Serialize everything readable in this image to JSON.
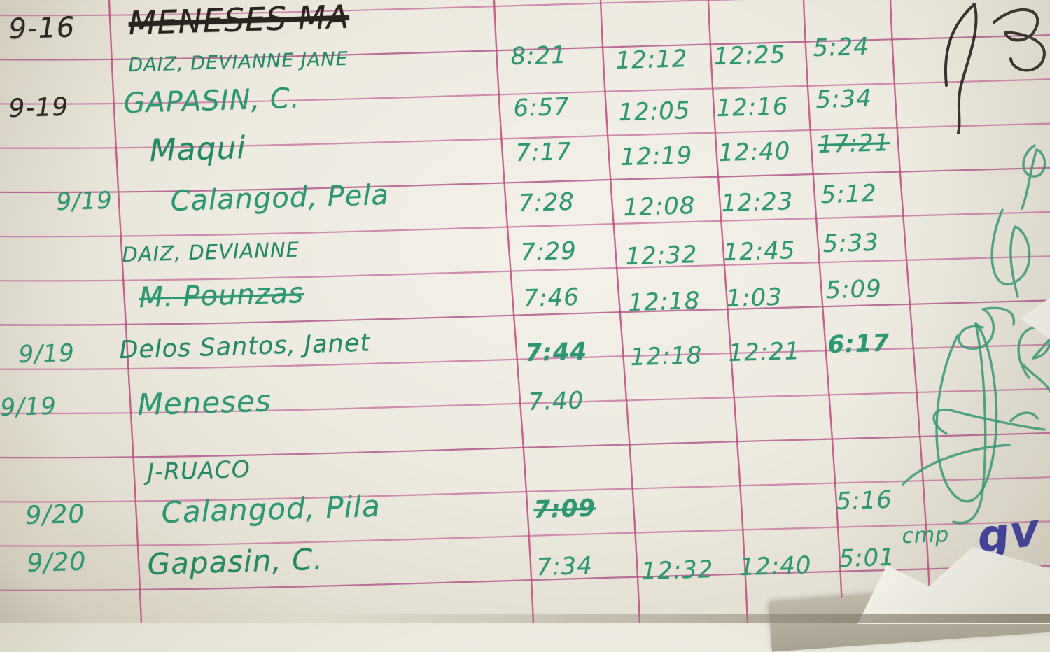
{
  "document": {
    "kind_label": "handwritten time log sheet",
    "header": {
      "date": "9-16",
      "name": "MENESES MA"
    }
  },
  "rows": [
    {
      "date": "9-16",
      "name": "MENESES MA",
      "name_struck": true,
      "ink": "black",
      "times": [
        "",
        "",
        "",
        ""
      ]
    },
    {
      "date": "",
      "name": "DAIZ, DEVIANNE  JANE",
      "times": [
        "8:21",
        "12:12",
        "12:25",
        "5:24"
      ]
    },
    {
      "date": "9-19",
      "name": "GAPASIN, C.",
      "times": [
        "6:57",
        "12:05",
        "12:16",
        "5:34"
      ]
    },
    {
      "date": "",
      "name": "Maqui",
      "times": [
        "7:17",
        "12:19",
        "12:40",
        "17:21"
      ],
      "time_struck": [
        false,
        false,
        false,
        true
      ]
    },
    {
      "date": "9/19",
      "name": "Calangod, Pela",
      "times": [
        "7:28",
        "12:08",
        "12:23",
        "5:12"
      ]
    },
    {
      "date": "",
      "name": "DAIZ, DEVIANNE",
      "times": [
        "7:29",
        "12:32",
        "12:45",
        "5:33"
      ]
    },
    {
      "date": "",
      "name": "M. Pounzas",
      "name_struck": true,
      "times": [
        "7:46",
        "12:18",
        "1:03",
        "5:09"
      ]
    },
    {
      "date": "9/19",
      "name": "Delos Santos, Janet",
      "times": [
        "7:44",
        "12:18",
        "12:21",
        "6:17"
      ],
      "time_bold": [
        true,
        false,
        false,
        true
      ]
    },
    {
      "date": "9/19",
      "name": "Meneses",
      "times": [
        "7.40",
        "",
        "",
        ""
      ]
    },
    {
      "date": "",
      "name": "J-RUACO",
      "times": [
        "",
        "",
        "",
        ""
      ]
    },
    {
      "date": "9/20",
      "name": "Calangod, Pila",
      "times": [
        "7:09",
        "",
        "",
        "5:16"
      ],
      "time_struck": [
        true,
        false,
        false,
        false
      ],
      "time_bold": [
        true,
        false,
        false,
        false
      ]
    },
    {
      "date": "9/20",
      "name": "Gapasin, C.",
      "times": [
        "7:34",
        "12:32",
        "12:40",
        "5:01"
      ],
      "note": "cmp"
    }
  ],
  "margin": {
    "signature_blue": "gv"
  },
  "colors": {
    "green_ink": "#2a9871",
    "black_ink": "#28241e",
    "blue_ink": "#3c3e9e",
    "rule_pink": "#c9719f",
    "column_magenta": "#c14a7c",
    "paper": "#edeae0"
  }
}
